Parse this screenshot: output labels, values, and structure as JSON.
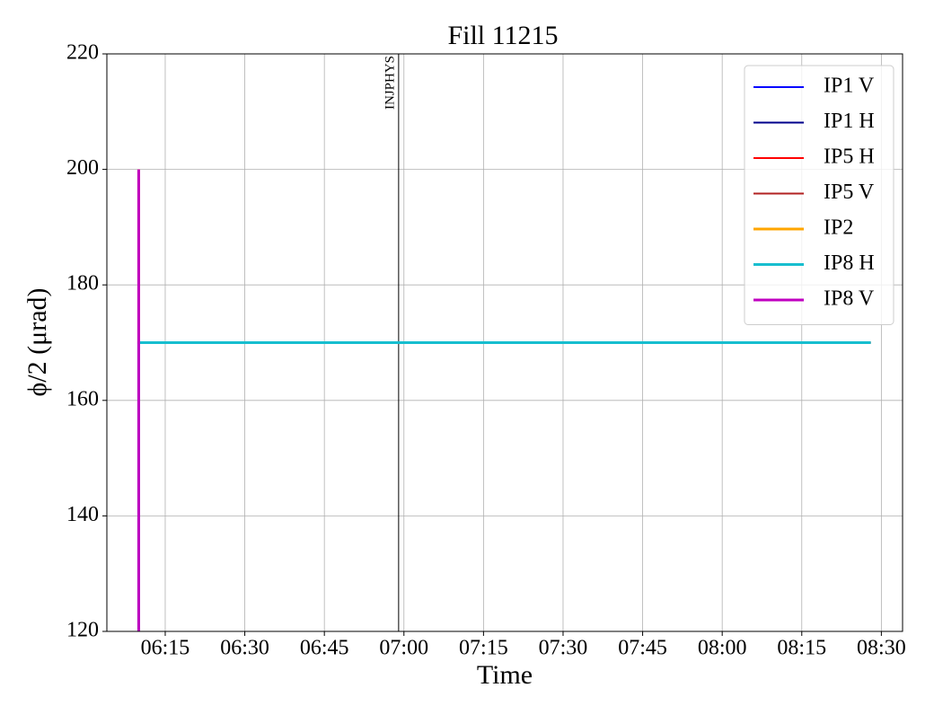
{
  "chart_data": {
    "type": "line",
    "title": "Fill 11215",
    "xlabel": "Time",
    "ylabel": "ϕ/2 (μrad)",
    "x": [
      "06:10",
      "06:10",
      "08:28"
    ],
    "series": [
      {
        "name": "IP1 V",
        "color": "#0000ff",
        "width": 2,
        "values": [
          120,
          170,
          170
        ]
      },
      {
        "name": "IP1 H",
        "color": "#00008b",
        "width": 2,
        "values": [
          120,
          170,
          170
        ]
      },
      {
        "name": "IP5 H",
        "color": "#ff0000",
        "width": 2,
        "values": [
          120,
          170,
          170
        ]
      },
      {
        "name": "IP5 V",
        "color": "#b22222",
        "width": 2,
        "values": [
          120,
          170,
          170
        ]
      },
      {
        "name": "IP2",
        "color": "#ffa500",
        "width": 3,
        "values": [
          200,
          170,
          170
        ]
      },
      {
        "name": "IP8 H",
        "color": "#17becf",
        "width": 3,
        "values": [
          120,
          170,
          170
        ]
      },
      {
        "name": "IP8 V",
        "color": "#c000c0",
        "width": 3,
        "values": [
          200,
          120,
          null
        ]
      }
    ],
    "xlim": [
      "06:04",
      "08:34"
    ],
    "xticks": [
      "06:15",
      "06:30",
      "06:45",
      "07:00",
      "07:15",
      "07:30",
      "07:45",
      "08:00",
      "08:15",
      "08:30"
    ],
    "ylim": [
      120,
      220
    ],
    "yticks": [
      120,
      140,
      160,
      180,
      200,
      220
    ],
    "grid": true,
    "legend": "upper right",
    "annotations": [
      {
        "x": "06:59",
        "label": "INJPHYS"
      }
    ]
  }
}
